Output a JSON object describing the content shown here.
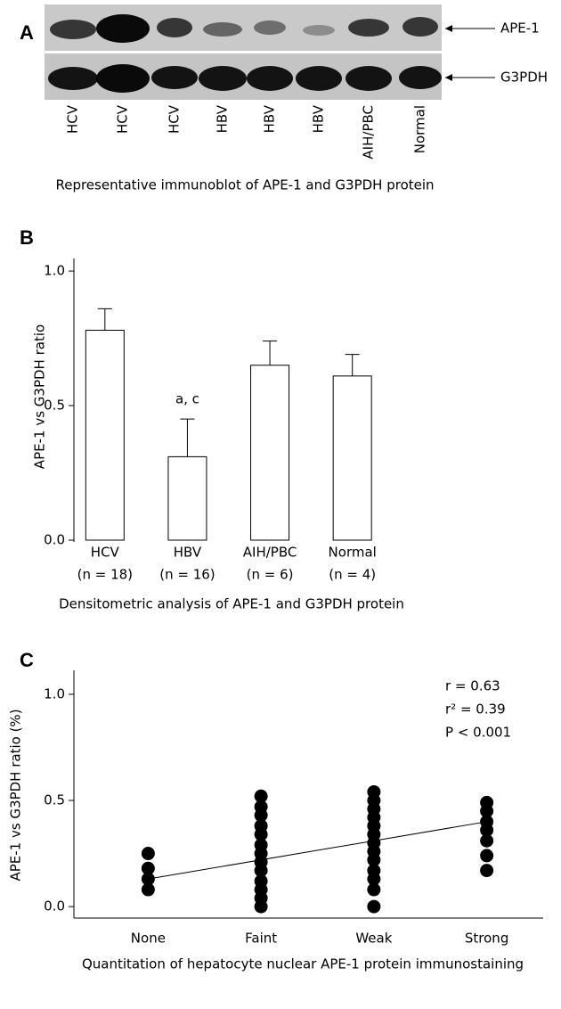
{
  "blot": {
    "label": "A",
    "lanes": [
      "HCV",
      "HCV",
      "HCV",
      "HBV",
      "HBV",
      "HBV",
      "AIH/PBC",
      "Normal"
    ],
    "bands": [
      "APE-1",
      "G3PDH"
    ],
    "caption": "Representative immunoblot of APE-1 and G3PDH protein"
  },
  "chart_data": [
    {
      "type": "bar",
      "panel": "B",
      "categories": [
        "HCV",
        "HBV",
        "AIH/PBC",
        "Normal"
      ],
      "sample_labels": [
        "(n = 18)",
        "(n = 16)",
        "(n = 6)",
        "(n = 4)"
      ],
      "values": [
        0.78,
        0.31,
        0.65,
        0.61
      ],
      "errors": [
        0.08,
        0.14,
        0.09,
        0.08
      ],
      "value_notes": [
        null,
        "a, c",
        null,
        null
      ],
      "ylabel": "APE-1 vs G3PDH ratio",
      "caption": "Densitometric analysis of APE-1 and G3PDH protein",
      "ylim": [
        0,
        1.05
      ],
      "yticks": [
        {
          "value": 0,
          "label": "0.0"
        },
        0.5,
        {
          "value": 1,
          "label": "1.0"
        }
      ],
      "color": "#ffffff"
    },
    {
      "type": "scatter",
      "panel": "C",
      "categories": [
        "None",
        "Faint",
        "Weak",
        "Strong"
      ],
      "values": [
        [
          0.25,
          0.18,
          0.13,
          0.08
        ],
        [
          0.52,
          0.47,
          0.43,
          0.38,
          0.34,
          0.29,
          0.25,
          0.21,
          0.17,
          0.12,
          0.08,
          0.04,
          0.0
        ],
        [
          0.54,
          0.5,
          0.46,
          0.42,
          0.38,
          0.34,
          0.3,
          0.26,
          0.22,
          0.17,
          0.13,
          0.08,
          0.0
        ],
        [
          0.49,
          0.45,
          0.4,
          0.36,
          0.31,
          0.24,
          0.17
        ]
      ],
      "trend": {
        "start": 0.13,
        "end": 0.4
      },
      "annotations": [
        "r = 0.63",
        "r² = 0.39",
        "P < 0.001"
      ],
      "xlabel": "Quantitation of hepatocyte nuclear APE-1 protein immunostaining",
      "ylabel": "APE-1 vs G3PDH ratio (%)",
      "ylim": [
        -0.05,
        1.05
      ],
      "yticks": [
        {
          "value": 0,
          "label": "0.0"
        },
        0.5,
        {
          "value": 1,
          "label": "1.0"
        }
      ],
      "color": "#000000"
    }
  ]
}
